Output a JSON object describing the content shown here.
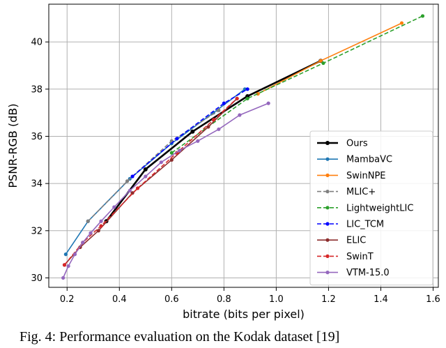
{
  "caption": "Fig. 4: Performance evaluation on the Kodak dataset [19]",
  "chart_data": {
    "type": "line",
    "title": "",
    "xlabel": "bitrate (bits per pixel)",
    "ylabel": "PSNR-RGB (dB)",
    "xlim": [
      0.13,
      1.62
    ],
    "ylim": [
      29.6,
      41.6
    ],
    "xticks": [
      0.2,
      0.4,
      0.6,
      0.8,
      1.0,
      1.2,
      1.4,
      1.6
    ],
    "xtick_labels": [
      "0.2",
      "0.4",
      "0.6",
      "0.8",
      "1.0",
      "1.2",
      "1.4",
      "1.6"
    ],
    "yticks": [
      30,
      32,
      34,
      36,
      38,
      40
    ],
    "ytick_labels": [
      "30",
      "32",
      "34",
      "36",
      "38",
      "40"
    ],
    "grid": true,
    "legend_position": "lower-right",
    "series": [
      {
        "name": "Ours",
        "color": "#000000",
        "dashed": false,
        "width": 2.6,
        "x": [
          0.35,
          0.5,
          0.68,
          0.89,
          1.17
        ],
        "y": [
          32.4,
          34.6,
          36.2,
          37.7,
          39.2
        ]
      },
      {
        "name": "MambaVC",
        "color": "#1f77b4",
        "dashed": false,
        "width": 1.6,
        "x": [
          0.195,
          0.28,
          0.44,
          0.6,
          0.76,
          0.88
        ],
        "y": [
          31.0,
          32.4,
          34.2,
          35.7,
          37.0,
          38.0
        ]
      },
      {
        "name": "SwinNPE",
        "color": "#ff7f0e",
        "dashed": false,
        "width": 1.6,
        "x": [
          0.93,
          1.17,
          1.48
        ],
        "y": [
          37.8,
          39.2,
          40.8
        ]
      },
      {
        "name": "MLIC+",
        "color": "#7f7f7f",
        "dashed": true,
        "width": 1.6,
        "x": [
          0.28,
          0.43,
          0.6,
          0.78
        ],
        "y": [
          32.4,
          34.1,
          35.8,
          37.1
        ]
      },
      {
        "name": "LightweightLIC",
        "color": "#2ca02c",
        "dashed": true,
        "width": 1.6,
        "x": [
          0.6,
          0.89,
          1.18,
          1.56
        ],
        "y": [
          35.3,
          37.6,
          39.1,
          41.1
        ]
      },
      {
        "name": "LIC_TCM",
        "color": "#0000ff",
        "dashed": true,
        "width": 1.6,
        "x": [
          0.45,
          0.62,
          0.8,
          0.89
        ],
        "y": [
          34.3,
          35.9,
          37.4,
          38.0
        ]
      },
      {
        "name": "ELIC",
        "color": "#8c2d2d",
        "dashed": false,
        "width": 1.6,
        "x": [
          0.19,
          0.25,
          0.32,
          0.45,
          0.6,
          0.74,
          0.85
        ],
        "y": [
          30.55,
          31.3,
          32.0,
          33.6,
          35.0,
          36.4,
          37.6
        ]
      },
      {
        "name": "SwinT",
        "color": "#d62728",
        "dashed": true,
        "width": 1.6,
        "x": [
          0.19,
          0.26,
          0.33,
          0.47,
          0.62,
          0.76,
          0.85
        ],
        "y": [
          30.55,
          31.5,
          32.2,
          33.8,
          35.3,
          36.7,
          37.6
        ]
      },
      {
        "name": "VTM-15.0",
        "color": "#9467bd",
        "dashed": false,
        "width": 1.6,
        "x": [
          0.185,
          0.205,
          0.23,
          0.26,
          0.29,
          0.33,
          0.38,
          0.44,
          0.5,
          0.56,
          0.63,
          0.7,
          0.78,
          0.86,
          0.97
        ],
        "y": [
          30.0,
          30.5,
          31.0,
          31.5,
          31.9,
          32.4,
          33.0,
          33.7,
          34.3,
          34.9,
          35.4,
          35.8,
          36.3,
          36.9,
          37.4
        ]
      }
    ]
  }
}
